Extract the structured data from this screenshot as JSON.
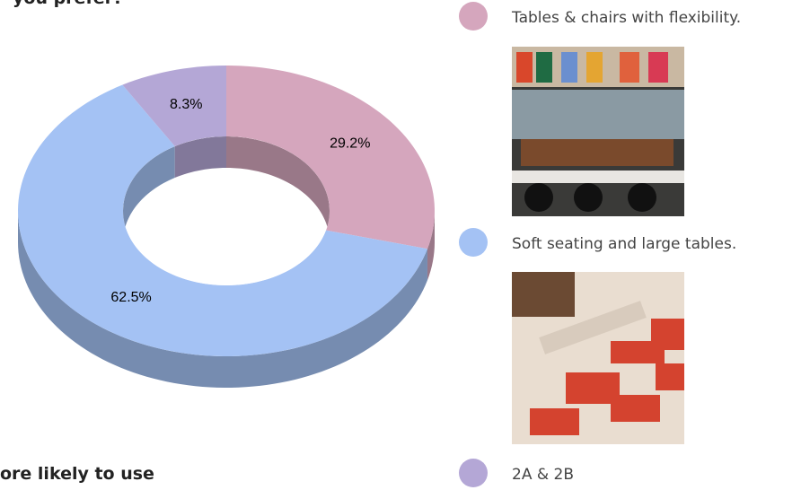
{
  "chart_data": {
    "type": "pie",
    "title": "you prefer?",
    "footer": "ore likely to use",
    "categories": [
      "Tables & chairs with flexibility.",
      "Soft seating and large tables.",
      "2A & 2B"
    ],
    "values": [
      29.2,
      62.5,
      8.3
    ],
    "value_labels": [
      "29.2%",
      "62.5%",
      "8.3%"
    ],
    "colors": [
      "#d5a6bd",
      "#a4c2f4",
      "#b4a7d6"
    ],
    "donut": true,
    "three_d": true,
    "legend": "right"
  }
}
